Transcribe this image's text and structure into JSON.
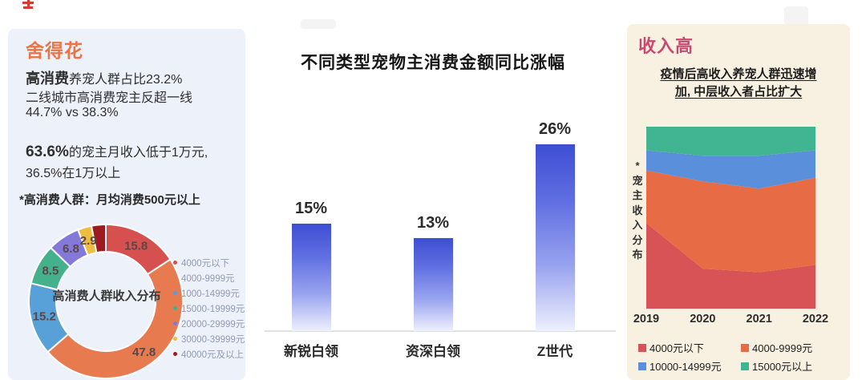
{
  "left_panel": {
    "title": "舍得花",
    "stat1_bold": "高消费",
    "stat1_rest": "养宠人群占比23.2%",
    "stat2": "二线城市高消费宠主反超一线",
    "stat3": "44.7% vs 38.3%",
    "stat4_bold": "63.6%",
    "stat4_rest": "的宠主月收入低于1万元,",
    "stat5": "36.5%在1万以上",
    "note": "*高消费人群：月均消费500元以上",
    "donut_center_label": "高消费人群收入分布"
  },
  "middle": {
    "title": "不同类型宠物主消费金额同比涨幅"
  },
  "right_panel": {
    "title": "收入高",
    "subtitle_line1": "疫情后高收入养宠人群迅速增",
    "subtitle_line2": "加, 中层收入者占比扩大",
    "side_label_star": "*",
    "side_label": "宠主收入分布"
  },
  "chart_data": [
    {
      "type": "pie",
      "donut": true,
      "title": "高消费人群收入分布",
      "labels": [
        "4000元以下",
        "4000-9999元",
        "1000-14999元",
        "15000-19999元",
        "20000-29999元",
        "30000-39999元",
        "40000元及以上"
      ],
      "values": [
        15.8,
        47.8,
        15.2,
        8.5,
        6.8,
        2.9,
        3.0
      ],
      "display_values": [
        "15.8",
        "47.8",
        "15.2",
        "8.5",
        "6.8",
        "2.9",
        ""
      ],
      "colors": [
        "#d65050",
        "#e87a50",
        "#57a0d8",
        "#43b18c",
        "#8478d8",
        "#eebc40",
        "#9c1a20"
      ],
      "legend_position": "right"
    },
    {
      "type": "bar",
      "title": "不同类型宠物主消费金额同比涨幅",
      "categories": [
        "新锐白领",
        "资深白领",
        "Z世代"
      ],
      "values": [
        15,
        13,
        26
      ],
      "labels": [
        "15%",
        "13%",
        "26%"
      ],
      "ylim": [
        0,
        28
      ],
      "bar_color_top": "#3e4ed3",
      "bar_color_bottom": "#eef0fd"
    },
    {
      "type": "area",
      "stacked": true,
      "x": [
        "2019",
        "2020",
        "2021",
        "2022"
      ],
      "ylim": [
        0,
        100
      ],
      "series": [
        {
          "name": "4000元以下",
          "color": "#d75356",
          "values": [
            47,
            22,
            20,
            24
          ]
        },
        {
          "name": "4000-9999元",
          "color": "#e76b45",
          "values": [
            29,
            48,
            46,
            48
          ]
        },
        {
          "name": "10000-14999元",
          "color": "#5a8fdb",
          "values": [
            11,
            14,
            18,
            15
          ]
        },
        {
          "name": "15000元以上",
          "color": "#41b491",
          "values": [
            13,
            16,
            16,
            13
          ]
        }
      ],
      "legend_order": [
        "4000元以下",
        "4000-9999元",
        "10000-14999元",
        "15000元以上"
      ]
    }
  ]
}
